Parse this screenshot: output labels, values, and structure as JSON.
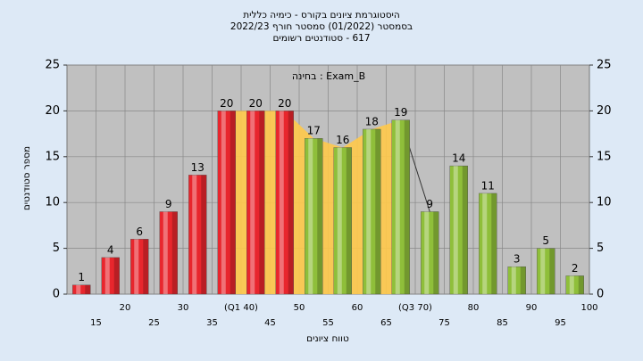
{
  "chart_data": {
    "type": "bar",
    "title": "היסטוגרמת ציונים בקורס - כימיה כללית",
    "subtitle": "בסמסטר (01/2022) סמסטר חורף 2022/23",
    "subtitle2": "617 - סטודנטים רשומים",
    "annotation": "בחינה : Exam_B",
    "x_label": "טווח ציונים",
    "y_label": "מספר סטודנטים",
    "categories": [
      "15",
      "20",
      "25",
      "30",
      "35",
      "(Q1 40)",
      "45",
      "50",
      "55",
      "60",
      "65",
      "(Q3 70)",
      "75",
      "80",
      "85",
      "90",
      "95",
      "100"
    ],
    "values": [
      1,
      4,
      6,
      9,
      13,
      20,
      20,
      20,
      17,
      16,
      18,
      19,
      9,
      14,
      11,
      3,
      5,
      2
    ],
    "colors": [
      "#e8262d",
      "#e8262d",
      "#e8262d",
      "#e8262d",
      "#e8262d",
      "#e8262d",
      "#e8262d",
      "#e8262d",
      "#8fbf3a",
      "#8fbf3a",
      "#8fbf3a",
      "#8fbf3a",
      "#8fbf3a",
      "#8fbf3a",
      "#8fbf3a",
      "#8fbf3a",
      "#8fbf3a",
      "#8fbf3a"
    ],
    "ylim": [
      0,
      25
    ],
    "yticks": [
      0,
      5,
      10,
      15,
      20,
      25
    ],
    "grid": true
  }
}
